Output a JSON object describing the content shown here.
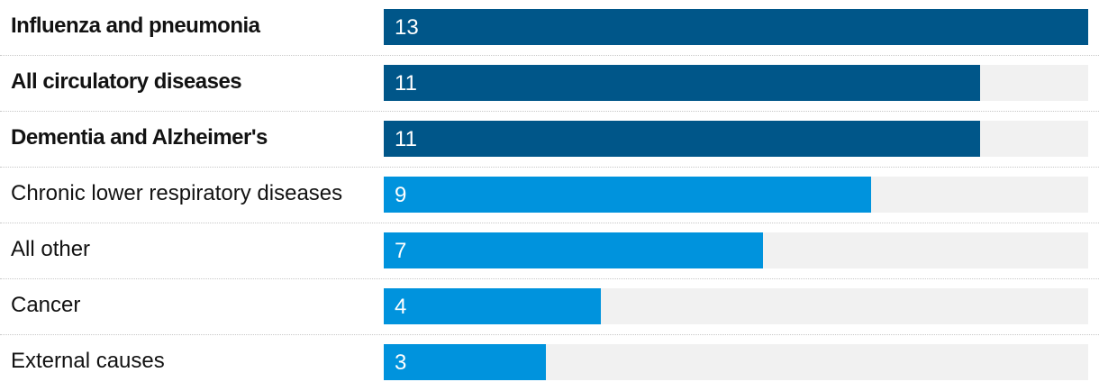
{
  "chart_data": {
    "type": "bar",
    "orientation": "horizontal",
    "title": "",
    "xlabel": "",
    "ylabel": "",
    "xlim": [
      0,
      13
    ],
    "grid": false,
    "categories": [
      "Influenza and pneumonia",
      "All circulatory diseases",
      "Dementia and Alzheimer's",
      "Chronic lower respiratory diseases",
      "All other",
      "Cancer",
      "External causes"
    ],
    "values": [
      13,
      11,
      11,
      9,
      7,
      4,
      3
    ],
    "value_labels": [
      "13",
      "11",
      "11",
      "9",
      "7",
      "4",
      "3"
    ],
    "highlighted": [
      true,
      true,
      true,
      false,
      false,
      false,
      false
    ],
    "colors": {
      "highlight": "#005689",
      "normal": "#0093dd",
      "track": "#f1f1f1"
    }
  }
}
